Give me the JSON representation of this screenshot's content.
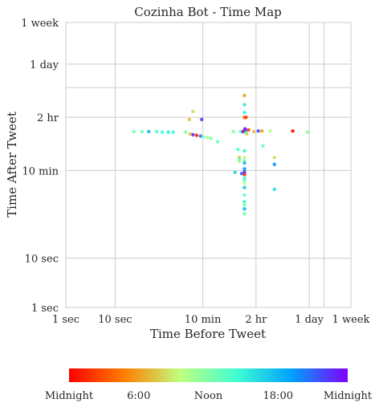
{
  "chart_data": {
    "type": "scatter",
    "title": "Cozinha Bot - Time Map",
    "xlabel": "Time Before Tweet",
    "ylabel": "Time After Tweet",
    "scale": "log",
    "units": "seconds",
    "xlim": [
      1,
      604800
    ],
    "ylim": [
      1,
      604800
    ],
    "grid": true,
    "xticks": [
      {
        "value": 1,
        "label": "1 sec"
      },
      {
        "value": 10,
        "label": "10 sec"
      },
      {
        "value": 600,
        "label": "10 min"
      },
      {
        "value": 7200,
        "label": "2 hr"
      },
      {
        "value": 86400,
        "label": "1 day"
      },
      {
        "value": 604800,
        "label": "1 week"
      }
    ],
    "yticks": [
      {
        "value": 1,
        "label": "1 sec"
      },
      {
        "value": 10,
        "label": "10 sec"
      },
      {
        "value": 600,
        "label": "10 min"
      },
      {
        "value": 7200,
        "label": "2 hr"
      },
      {
        "value": 86400,
        "label": "1 day"
      },
      {
        "value": 604800,
        "label": "1 week"
      }
    ],
    "extra_gridlines": {
      "x": [
        172800
      ],
      "y": [
        28800
      ]
    },
    "colorbar": {
      "colormap": "rainbow",
      "colors": [
        "#ff0000",
        "#ff8000",
        "#c0ff80",
        "#40ffd0",
        "#00a0ff",
        "#8000ff"
      ],
      "ticks": [
        "Midnight",
        "6:00",
        "Noon",
        "18:00",
        "Midnight"
      ]
    },
    "points": [
      {
        "x": 270,
        "y": 3600,
        "c": 0.5
      },
      {
        "x": 150,
        "y": 3600,
        "c": 0.62
      },
      {
        "x": 120,
        "y": 3600,
        "c": 0.64
      },
      {
        "x": 90,
        "y": 3600,
        "c": 0.6
      },
      {
        "x": 70,
        "y": 3700,
        "c": 0.58
      },
      {
        "x": 48,
        "y": 3700,
        "c": 0.75
      },
      {
        "x": 35,
        "y": 3700,
        "c": 0.55
      },
      {
        "x": 24,
        "y": 3700,
        "c": 0.52
      },
      {
        "x": 330,
        "y": 3300,
        "c": 0.3
      },
      {
        "x": 380,
        "y": 3200,
        "c": 0.95
      },
      {
        "x": 450,
        "y": 3100,
        "c": 0.05
      },
      {
        "x": 540,
        "y": 3000,
        "c": 0.85
      },
      {
        "x": 620,
        "y": 2900,
        "c": 0.5
      },
      {
        "x": 750,
        "y": 2800,
        "c": 0.45
      },
      {
        "x": 880,
        "y": 2700,
        "c": 0.48
      },
      {
        "x": 1200,
        "y": 2300,
        "c": 0.55
      },
      {
        "x": 570,
        "y": 6500,
        "c": 0.93
      },
      {
        "x": 380,
        "y": 9500,
        "c": 0.35
      },
      {
        "x": 320,
        "y": 6500,
        "c": 0.3
      },
      {
        "x": 2500,
        "y": 3700,
        "c": 0.5
      },
      {
        "x": 3500,
        "y": 3700,
        "c": 0.55
      },
      {
        "x": 3900,
        "y": 3700,
        "c": 0.95
      },
      {
        "x": 4200,
        "y": 3800,
        "c": 0.02
      },
      {
        "x": 4600,
        "y": 3900,
        "c": 0.85
      },
      {
        "x": 5100,
        "y": 4000,
        "c": 0.12
      },
      {
        "x": 6500,
        "y": 3700,
        "c": 0.3
      },
      {
        "x": 8000,
        "y": 3800,
        "c": 0.9
      },
      {
        "x": 9500,
        "y": 3800,
        "c": 0.25
      },
      {
        "x": 14000,
        "y": 3800,
        "c": 0.42
      },
      {
        "x": 40000,
        "y": 3800,
        "c": 0.02
      },
      {
        "x": 80000,
        "y": 3600,
        "c": 0.5
      },
      {
        "x": 4300,
        "y": 4200,
        "c": 0.98
      },
      {
        "x": 4500,
        "y": 3500,
        "c": 0.6
      },
      {
        "x": 4700,
        "y": 3300,
        "c": 0.33
      },
      {
        "x": 4200,
        "y": 20000,
        "c": 0.25
      },
      {
        "x": 4200,
        "y": 13000,
        "c": 0.65
      },
      {
        "x": 4200,
        "y": 9000,
        "c": 0.63
      },
      {
        "x": 4500,
        "y": 7200,
        "c": 0.05
      },
      {
        "x": 4200,
        "y": 7200,
        "c": 0.14
      },
      {
        "x": 4200,
        "y": 1500,
        "c": 0.62
      },
      {
        "x": 4200,
        "y": 1100,
        "c": 0.4
      },
      {
        "x": 4200,
        "y": 950,
        "c": 0.5
      },
      {
        "x": 4200,
        "y": 850,
        "c": 0.75
      },
      {
        "x": 4200,
        "y": 650,
        "c": 0.82
      },
      {
        "x": 4200,
        "y": 560,
        "c": 0.95
      },
      {
        "x": 4200,
        "y": 500,
        "c": 0.05
      },
      {
        "x": 4200,
        "y": 420,
        "c": 0.62
      },
      {
        "x": 4200,
        "y": 380,
        "c": 0.55
      },
      {
        "x": 4200,
        "y": 330,
        "c": 0.4
      },
      {
        "x": 4200,
        "y": 270,
        "c": 0.72
      },
      {
        "x": 4200,
        "y": 190,
        "c": 0.55
      },
      {
        "x": 4200,
        "y": 140,
        "c": 0.62
      },
      {
        "x": 4200,
        "y": 120,
        "c": 0.5
      },
      {
        "x": 4200,
        "y": 100,
        "c": 0.75
      },
      {
        "x": 4200,
        "y": 80,
        "c": 0.52
      },
      {
        "x": 3300,
        "y": 1100,
        "c": 0.3
      },
      {
        "x": 3300,
        "y": 900,
        "c": 0.4
      },
      {
        "x": 3300,
        "y": 1000,
        "c": 0.55
      },
      {
        "x": 3100,
        "y": 1600,
        "c": 0.58
      },
      {
        "x": 2700,
        "y": 550,
        "c": 0.68
      },
      {
        "x": 3700,
        "y": 520,
        "c": 0.88
      },
      {
        "x": 10000,
        "y": 1900,
        "c": 0.55
      },
      {
        "x": 17000,
        "y": 1100,
        "c": 0.35
      },
      {
        "x": 17000,
        "y": 800,
        "c": 0.82
      },
      {
        "x": 17000,
        "y": 250,
        "c": 0.68
      }
    ]
  }
}
